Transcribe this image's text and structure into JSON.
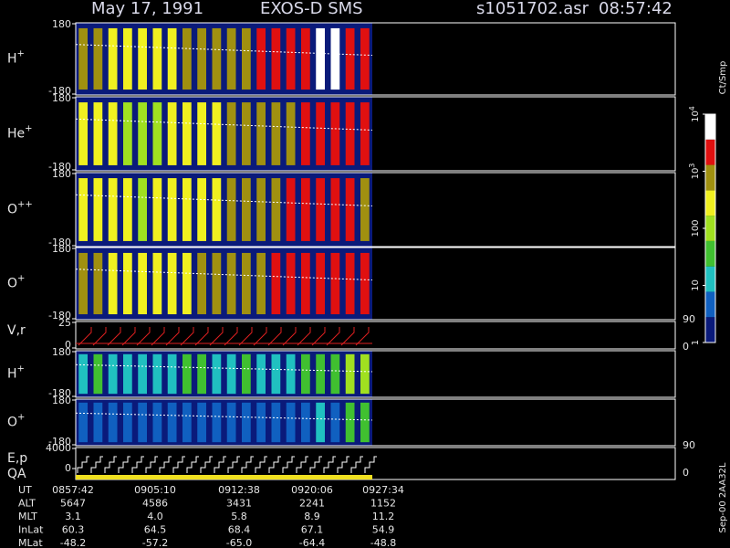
{
  "header": {
    "date": "May 17, 1991",
    "instrument": "EXOS-D SMS",
    "file": "s1051702.asr",
    "time": "08:57:42"
  },
  "colormap": [
    "#0a1a7a",
    "#1060c0",
    "#20c0c0",
    "#40c030",
    "#a0e020",
    "#f0f020",
    "#a09010",
    "#e01010",
    "#ffffff"
  ],
  "panels": [
    {
      "label": "H",
      "sup": "+",
      "yticks": [
        180,
        -180
      ],
      "columns": [
        3.0,
        3.0,
        2.6,
        2.5,
        2.5,
        2.4,
        2.6,
        2.8,
        3.0,
        2.9,
        3.0,
        3.2,
        3.3,
        3.4,
        3.5,
        3.6,
        3.8,
        3.8,
        3.7,
        3.4
      ]
    },
    {
      "label": "He",
      "sup": "+",
      "yticks": [
        180,
        -180
      ],
      "columns": [
        2.4,
        2.5,
        2.3,
        2.2,
        2.2,
        2.2,
        2.4,
        2.5,
        2.7,
        2.7,
        2.8,
        2.9,
        3.0,
        3.1,
        3.2,
        3.3,
        3.5,
        3.6,
        3.6,
        3.3
      ]
    },
    {
      "label": "O",
      "sup": "++",
      "yticks": [
        180,
        -180
      ],
      "columns": [
        2.3,
        2.5,
        2.4,
        2.3,
        2.2,
        2.3,
        2.4,
        2.6,
        2.7,
        2.7,
        2.9,
        3.0,
        3.1,
        3.2,
        3.3,
        3.3,
        3.5,
        3.6,
        3.5,
        3.2
      ]
    },
    {
      "label": "O",
      "sup": "+",
      "yticks": [
        180,
        -180
      ],
      "columns": [
        2.8,
        2.9,
        2.6,
        2.5,
        2.4,
        2.4,
        2.6,
        2.7,
        2.9,
        2.9,
        3.0,
        3.1,
        3.2,
        3.3,
        3.4,
        3.5,
        3.6,
        3.6,
        3.6,
        3.3
      ]
    }
  ],
  "velocity_panel": {
    "label": "V,r",
    "yticks": [
      25,
      0
    ],
    "right_ticks": [
      90,
      0
    ]
  },
  "low_panels": [
    {
      "label": "H",
      "sup": "+",
      "yticks": [
        180,
        -180
      ],
      "columns": [
        1.2,
        1.3,
        1.2,
        1.1,
        1.2,
        1.1,
        1.2,
        1.3,
        1.4,
        1.2,
        1.2,
        1.3,
        1.2,
        1.1,
        1.2,
        1.4,
        1.5,
        1.3,
        1.8,
        2.0
      ]
    },
    {
      "label": "O",
      "sup": "+",
      "yticks": [
        180,
        -180
      ],
      "columns": [
        0.3,
        0.4,
        0.3,
        0.3,
        0.4,
        0.5,
        0.3,
        0.3,
        0.3,
        0.3,
        0.4,
        0.4,
        0.4,
        0.3,
        0.3,
        0.4,
        1.0,
        0.6,
        1.3,
        1.6
      ]
    }
  ],
  "energy_panel": {
    "label": "E,p",
    "label2": "QA",
    "yticks": [
      4000,
      0
    ],
    "right_ticks": [
      90,
      0
    ]
  },
  "colorbar": {
    "unit": "Ct/Smp",
    "ticks": [
      {
        "value": 4,
        "label": "10",
        "sup": "4"
      },
      {
        "value": 3,
        "label": "10",
        "sup": "3"
      },
      2,
      1,
      0
    ]
  },
  "colorbar_labels": [
    "100",
    "10",
    "1"
  ],
  "ephemeris": {
    "rows": [
      {
        "name": "UT",
        "values": [
          "0857:42",
          "0905:10",
          "0912:38",
          "0920:06",
          "0927:34"
        ]
      },
      {
        "name": "ALT",
        "values": [
          "5647",
          "4586",
          "3431",
          "2241",
          "1152"
        ]
      },
      {
        "name": "MLT",
        "values": [
          "3.1",
          "4.0",
          "5.8",
          "8.9",
          "11.2"
        ]
      },
      {
        "name": "InLat",
        "values": [
          "60.3",
          "64.5",
          "68.4",
          "67.1",
          "54.9"
        ]
      },
      {
        "name": "MLat",
        "values": [
          "-48.2",
          "-57.2",
          "-65.0",
          "-64.4",
          "-48.8"
        ]
      }
    ]
  },
  "footer": "Sep-00  2AA32L"
}
